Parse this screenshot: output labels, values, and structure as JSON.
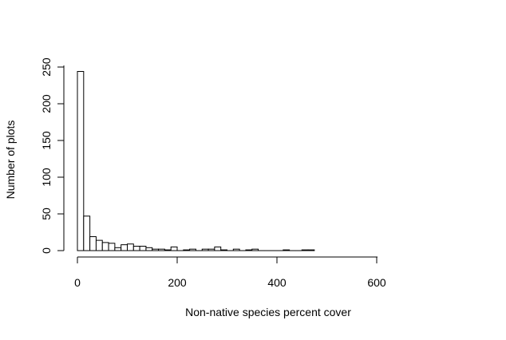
{
  "chart_data": {
    "type": "bar",
    "title": "",
    "xlabel": "Non-native species percent cover",
    "ylabel": "Number of plots",
    "bin_width": 12.5,
    "x_start": 0,
    "values": [
      244,
      47,
      19,
      14,
      11,
      10,
      4,
      8,
      9,
      6,
      6,
      4,
      2,
      2,
      1,
      5,
      0,
      1,
      2,
      0,
      2,
      2,
      5,
      1,
      0,
      2,
      0,
      1,
      2,
      0,
      0,
      0,
      0,
      1,
      0,
      0,
      1,
      1
    ],
    "xlim": [
      0,
      760
    ],
    "ylim": [
      0,
      250
    ],
    "x_ticks": [
      0,
      200,
      400,
      600
    ],
    "y_ticks": [
      0,
      50,
      100,
      150,
      200,
      250
    ],
    "x_tick_labels": [
      "0",
      "200",
      "400",
      "600"
    ],
    "y_tick_labels": [
      "0",
      "50",
      "100",
      "150",
      "200",
      "250"
    ],
    "grid": false,
    "bar_fill": "#ffffff",
    "bar_stroke": "#000000"
  }
}
